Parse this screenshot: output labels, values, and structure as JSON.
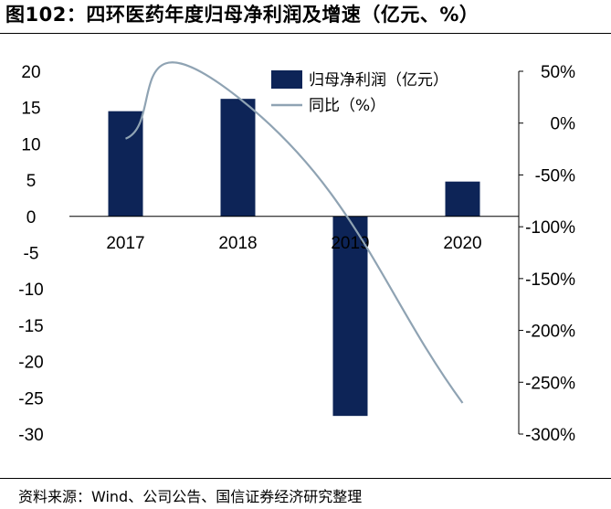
{
  "title": "图102：四环医药年度归母净利润及增速（亿元、%）",
  "source": "资料来源：Wind、公司公告、国信证券经济研究整理",
  "chart_data": {
    "type": "bar",
    "categories": [
      "2017",
      "2018",
      "2019",
      "2020"
    ],
    "series": [
      {
        "name": "归母净利润（亿元）",
        "type": "bar",
        "axis": "left",
        "color": "#0d2457",
        "values": [
          14.5,
          16.2,
          -27.5,
          4.8
        ]
      },
      {
        "name": "同比（%）",
        "type": "line",
        "axis": "right",
        "color": "#8fa3b3",
        "smooth": true,
        "values": [
          -15,
          25,
          null,
          -270
        ]
      }
    ],
    "ylim_left": [
      -30,
      20
    ],
    "yticks_left": [
      "20",
      "15",
      "10",
      "5",
      "0",
      "-5",
      "-10",
      "-15",
      "-20",
      "-25",
      "-30"
    ],
    "ylim_right": [
      -300,
      50
    ],
    "yticks_right": [
      "50%",
      "0%",
      "-50%",
      "-100%",
      "-150%",
      "-200%",
      "-250%",
      "-300%"
    ],
    "legend_position": "top-right"
  }
}
